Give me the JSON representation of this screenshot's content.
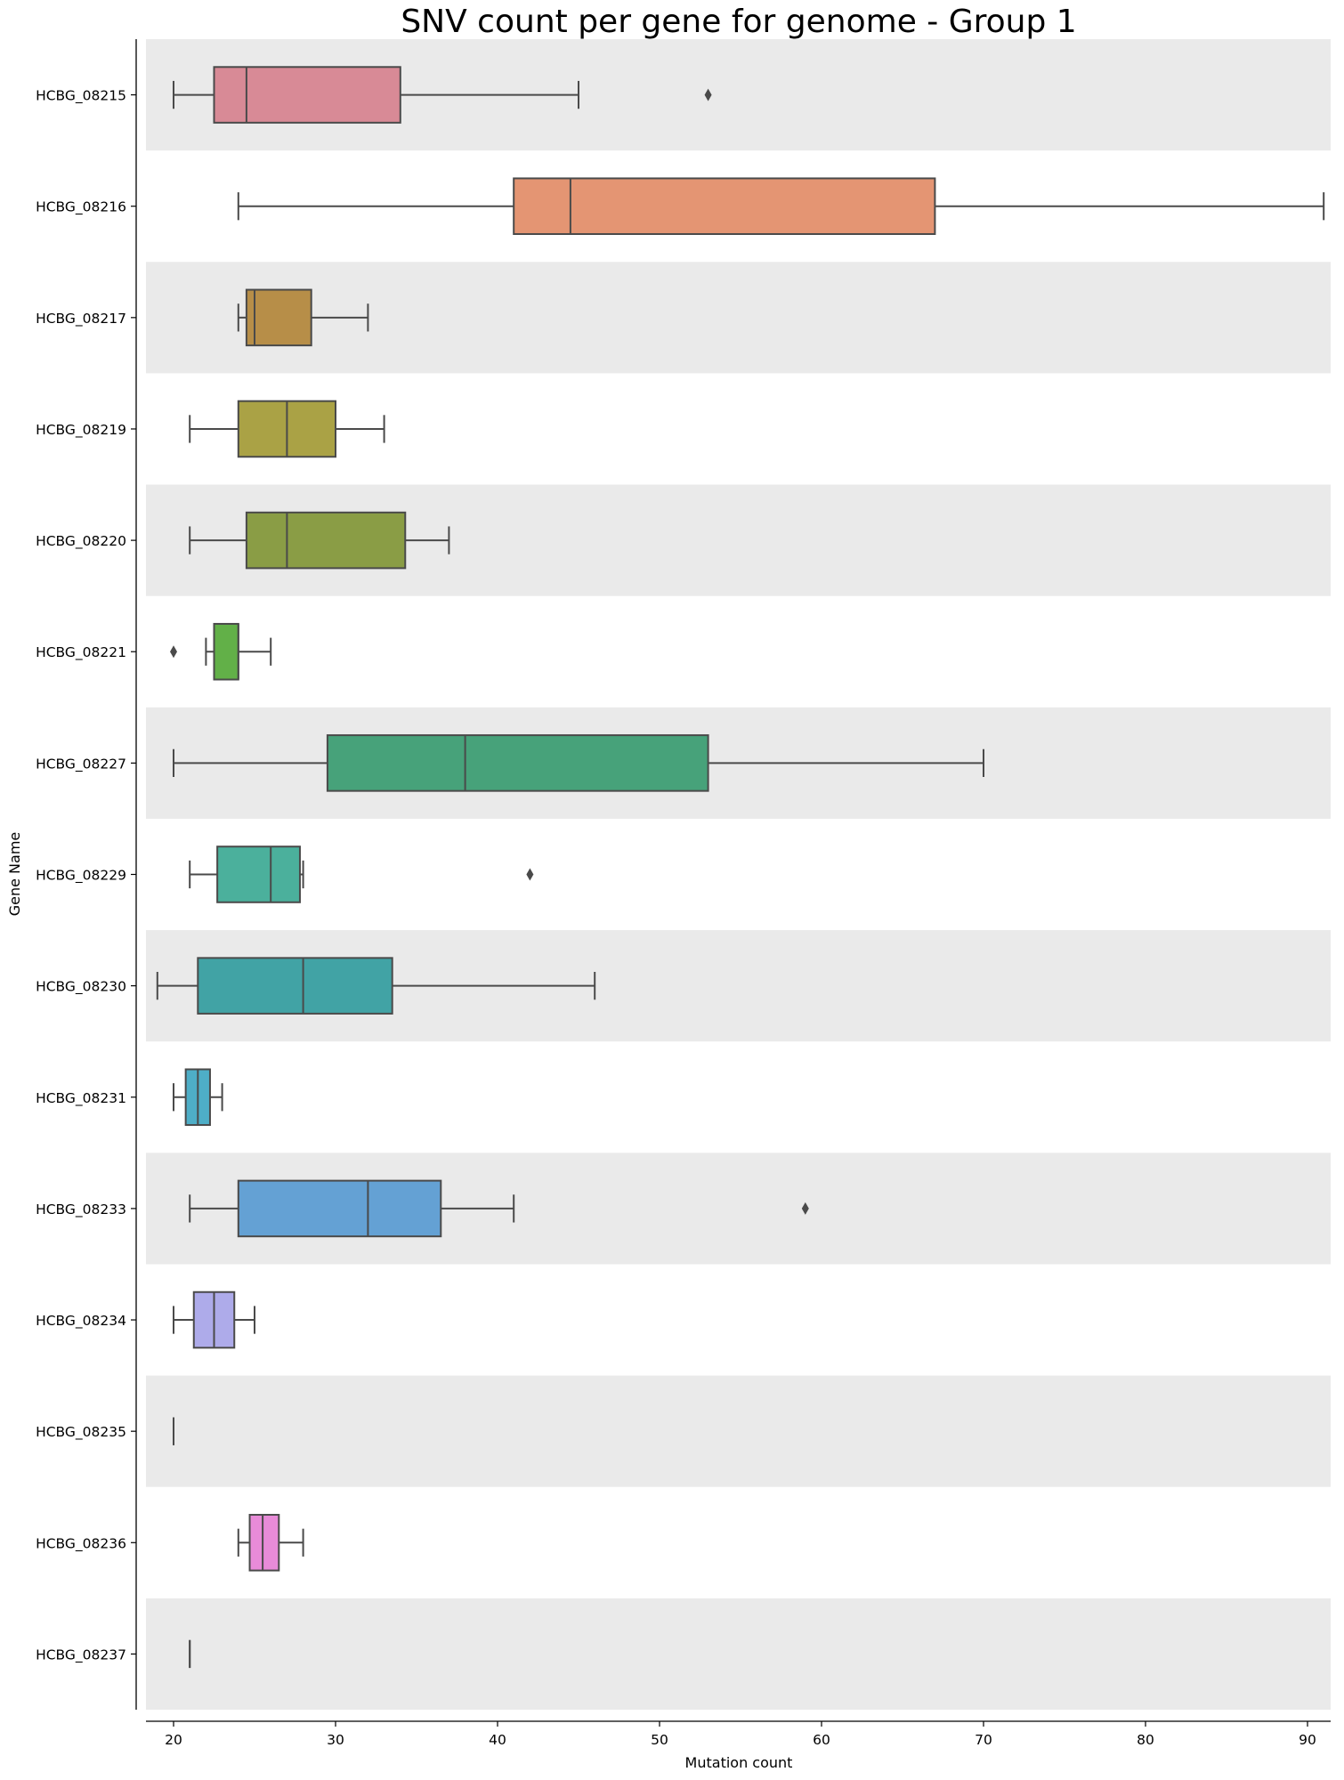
{
  "chart_data": {
    "type": "boxplot",
    "orientation": "horizontal",
    "title": "SNV count per gene for genome - Group 1",
    "xlabel": "Mutation count",
    "ylabel": "Gene Name",
    "xlim": [
      18.3,
      92
    ],
    "xticks": [
      20,
      30,
      40,
      50,
      60,
      70,
      80,
      90
    ],
    "band_color": "#eaeaea",
    "line_color": "#4a4a4a",
    "categories": [
      "HCBG_08215",
      "HCBG_08216",
      "HCBG_08217",
      "HCBG_08219",
      "HCBG_08220",
      "HCBG_08221",
      "HCBG_08227",
      "HCBG_08229",
      "HCBG_08230",
      "HCBG_08231",
      "HCBG_08233",
      "HCBG_08234",
      "HCBG_08235",
      "HCBG_08236",
      "HCBG_08237"
    ],
    "boxes": [
      {
        "gene": "HCBG_08215",
        "whislo": 20,
        "q1": 22.5,
        "med": 24.5,
        "q3": 34,
        "whishi": 45,
        "fliers": [
          53
        ],
        "color": "#d88a96"
      },
      {
        "gene": "HCBG_08216",
        "whislo": 24,
        "q1": 41,
        "med": 44.5,
        "q3": 67,
        "whishi": 91,
        "fliers": [],
        "color": "#e49573"
      },
      {
        "gene": "HCBG_08217",
        "whislo": 24,
        "q1": 24.5,
        "med": 25,
        "q3": 28.5,
        "whishi": 32,
        "fliers": [],
        "color": "#b78e48"
      },
      {
        "gene": "HCBG_08219",
        "whislo": 21,
        "q1": 24,
        "med": 27,
        "q3": 30,
        "whishi": 33,
        "fliers": [],
        "color": "#aaa245"
      },
      {
        "gene": "HCBG_08220",
        "whislo": 21,
        "q1": 24.5,
        "med": 27,
        "q3": 34.3,
        "whishi": 37,
        "fliers": [],
        "color": "#8a9d45"
      },
      {
        "gene": "HCBG_08221",
        "whislo": 22,
        "q1": 22.5,
        "med": 24,
        "q3": 24,
        "whishi": 26,
        "fliers": [
          20
        ],
        "color": "#62b048"
      },
      {
        "gene": "HCBG_08227",
        "whislo": 20,
        "q1": 29.5,
        "med": 38,
        "q3": 53,
        "whishi": 70,
        "fliers": [],
        "color": "#47a27a"
      },
      {
        "gene": "HCBG_08229",
        "whislo": 21,
        "q1": 22.7,
        "med": 26,
        "q3": 27.8,
        "whishi": 28,
        "fliers": [
          42
        ],
        "color": "#4bb09c"
      },
      {
        "gene": "HCBG_08230",
        "whislo": 19,
        "q1": 21.5,
        "med": 28,
        "q3": 33.5,
        "whishi": 46,
        "fliers": [],
        "color": "#41a3a5"
      },
      {
        "gene": "HCBG_08231",
        "whislo": 20,
        "q1": 20.75,
        "med": 21.5,
        "q3": 22.25,
        "whishi": 23,
        "fliers": [],
        "color": "#4eaec7"
      },
      {
        "gene": "HCBG_08233",
        "whislo": 21,
        "q1": 24,
        "med": 32,
        "q3": 36.5,
        "whishi": 41,
        "fliers": [
          59
        ],
        "color": "#64a1d4"
      },
      {
        "gene": "HCBG_08234",
        "whislo": 20,
        "q1": 21.25,
        "med": 22.5,
        "q3": 23.75,
        "whishi": 25,
        "fliers": [],
        "color": "#aeabea"
      },
      {
        "gene": "HCBG_08235",
        "whislo": 20,
        "q1": 20,
        "med": 20,
        "q3": 20,
        "whishi": 20,
        "fliers": [],
        "color": "#c79be0"
      },
      {
        "gene": "HCBG_08236",
        "whislo": 24,
        "q1": 24.7,
        "med": 25.5,
        "q3": 26.5,
        "whishi": 28,
        "fliers": [],
        "color": "#e88bd8"
      },
      {
        "gene": "HCBG_08237",
        "whislo": 21,
        "q1": 21,
        "med": 21,
        "q3": 21,
        "whishi": 21,
        "fliers": [],
        "color": "#e48bb8"
      }
    ]
  }
}
